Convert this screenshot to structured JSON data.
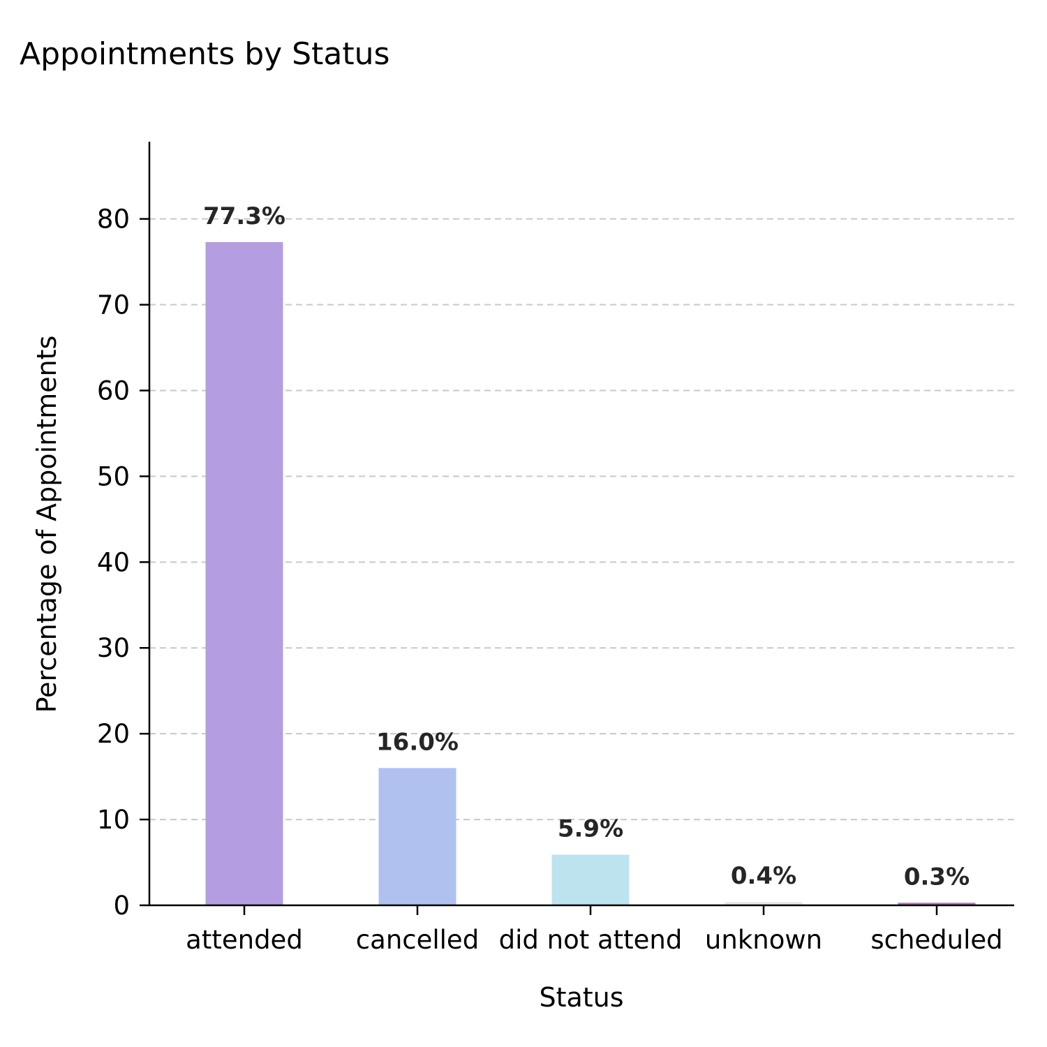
{
  "chart_data": {
    "type": "bar",
    "title": "Appointments by Status",
    "xlabel": "Status",
    "ylabel": "Percentage of Appointments",
    "categories": [
      "attended",
      "cancelled",
      "did not attend",
      "unknown",
      "scheduled"
    ],
    "values": [
      77.3,
      16.0,
      5.9,
      0.4,
      0.3
    ],
    "value_labels": [
      "77.3%",
      "16.0%",
      "5.9%",
      "0.4%",
      "0.3%"
    ],
    "colors": [
      "#b49de0",
      "#b1c1ef",
      "#bde3ef",
      "#e8e8e8",
      "#b07ab8"
    ],
    "ylim": [
      0,
      89
    ],
    "yticks": [
      0,
      10,
      20,
      30,
      40,
      50,
      60,
      70,
      80
    ],
    "grid": true,
    "grid_axis": "y",
    "legend": false
  }
}
